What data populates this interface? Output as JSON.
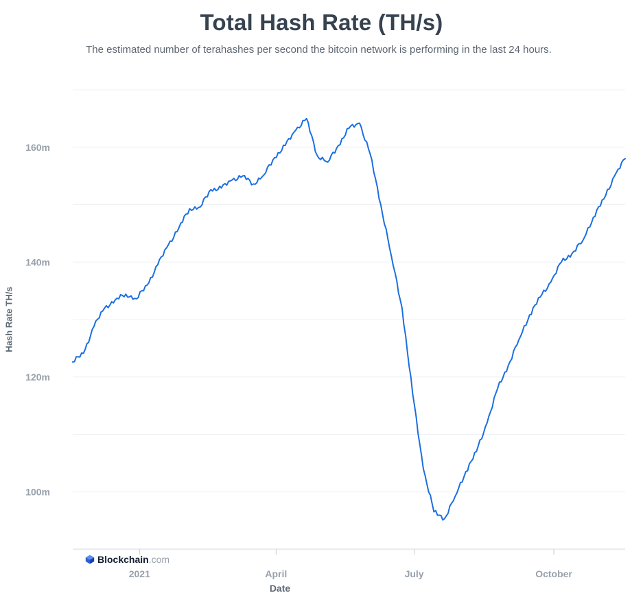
{
  "chart_data": {
    "type": "line",
    "title": "Total Hash Rate (TH/s)",
    "subtitle": "The estimated number of terahashes per second the bitcoin network is performing in the last 24 hours.",
    "xlabel": "Date",
    "ylabel": "Hash Rate TH/s",
    "watermark": {
      "brand": "Blockchain",
      "suffix": ".com"
    },
    "x_ticks": [
      "2021",
      "April",
      "July",
      "October"
    ],
    "y_ticks": [
      "100m",
      "120m",
      "140m",
      "160m"
    ],
    "ylim": [
      90,
      170
    ],
    "grid": true,
    "line_color": "#1b6fe0",
    "series": [
      {
        "x": [
          "2020-11-18",
          "2020-11-25",
          "2020-12-02",
          "2020-12-09",
          "2020-12-16",
          "2020-12-23",
          "2020-12-30",
          "2021-01-06",
          "2021-01-13",
          "2021-01-20",
          "2021-01-27",
          "2021-02-03",
          "2021-02-10",
          "2021-02-17",
          "2021-02-24",
          "2021-03-03",
          "2021-03-10",
          "2021-03-17",
          "2021-03-24",
          "2021-03-31",
          "2021-04-07",
          "2021-04-14",
          "2021-04-21",
          "2021-04-28",
          "2021-05-05",
          "2021-05-12",
          "2021-05-19",
          "2021-05-26",
          "2021-06-02",
          "2021-06-09",
          "2021-06-16",
          "2021-06-23",
          "2021-06-30",
          "2021-07-07",
          "2021-07-14",
          "2021-07-21",
          "2021-07-28",
          "2021-08-04",
          "2021-08-11",
          "2021-08-18",
          "2021-08-25",
          "2021-09-01",
          "2021-09-08",
          "2021-09-15",
          "2021-09-22",
          "2021-09-29",
          "2021-10-06",
          "2021-10-13",
          "2021-10-20",
          "2021-10-27",
          "2021-11-03",
          "2021-11-10",
          "2021-11-17"
        ],
        "values": [
          122.6,
          124.1,
          128.8,
          132.0,
          133.4,
          134.4,
          133.6,
          136.0,
          139.5,
          143.0,
          146.0,
          149.3,
          149.6,
          152.6,
          152.9,
          154.3,
          155.0,
          153.6,
          155.2,
          158.2,
          160.3,
          163.0,
          165.0,
          158.6,
          157.4,
          160.3,
          163.3,
          164.2,
          158.8,
          150.0,
          141.0,
          132.0,
          117.0,
          104.0,
          96.5,
          95.3,
          99.2,
          103.5,
          107.0,
          112.0,
          118.0,
          122.0,
          126.5,
          130.8,
          133.9,
          136.5,
          140.0,
          141.5,
          143.7,
          147.8,
          151.0,
          155.0,
          158.0
        ]
      }
    ]
  }
}
